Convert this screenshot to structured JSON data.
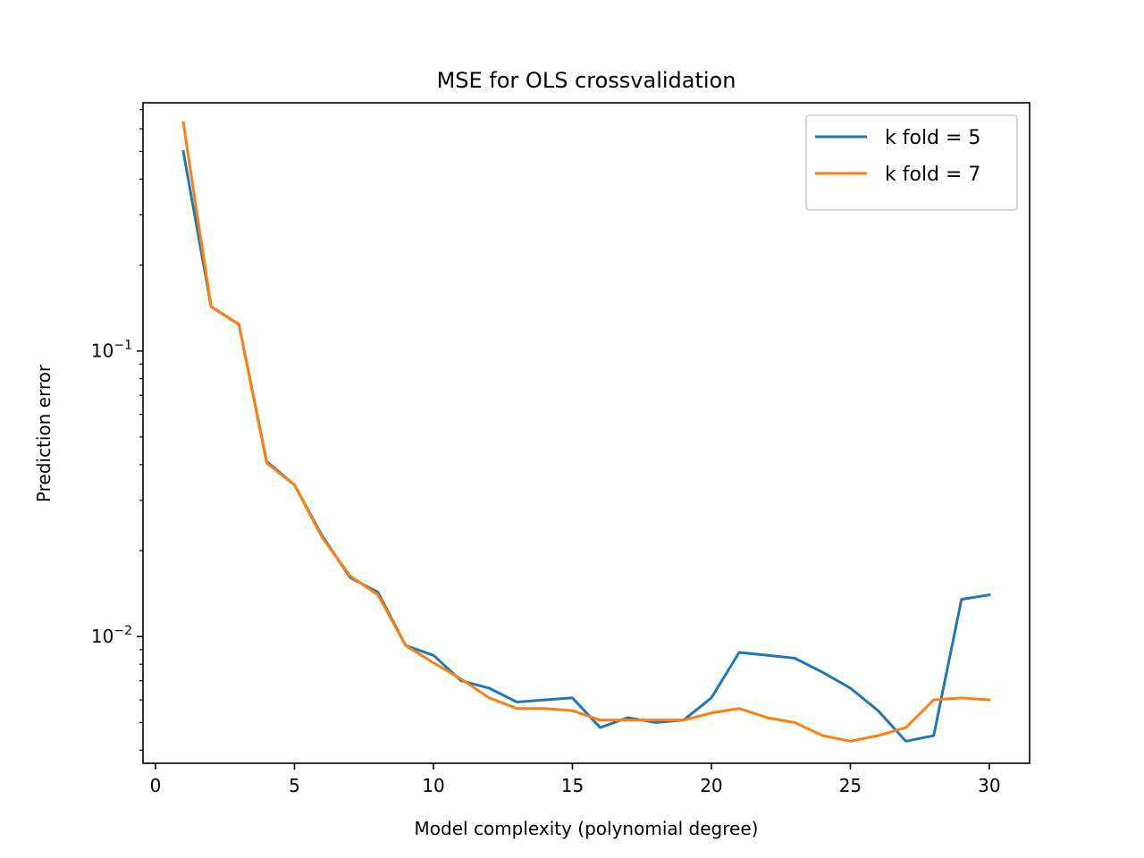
{
  "chart_data": {
    "type": "line",
    "title": "MSE for OLS crossvalidation",
    "xlabel": "Model complexity (polynomial degree)",
    "ylabel": "Prediction error",
    "xlim": [
      -0.45,
      31.45
    ],
    "ylim": [
      0.0036,
      0.74
    ],
    "yscale": "log",
    "grid": false,
    "legend_position": "top-right",
    "x_ticks": [
      0,
      5,
      10,
      15,
      20,
      25,
      30
    ],
    "y_ticks": [
      {
        "value": 0.1,
        "base": "10",
        "exp": "−1"
      },
      {
        "value": 0.01,
        "base": "10",
        "exp": "−2"
      }
    ],
    "x": [
      1,
      2,
      3,
      4,
      5,
      6,
      7,
      8,
      9,
      10,
      11,
      12,
      13,
      14,
      15,
      16,
      17,
      18,
      19,
      20,
      21,
      22,
      23,
      24,
      25,
      26,
      27,
      28,
      29,
      30
    ],
    "series": [
      {
        "name": "k fold = 5",
        "color": "#1f77b4",
        "values": [
          0.5,
          0.143,
          0.124,
          0.041,
          0.034,
          0.0225,
          0.0161,
          0.0143,
          0.0093,
          0.0086,
          0.007,
          0.0066,
          0.0059,
          0.006,
          0.0061,
          0.0048,
          0.0052,
          0.005,
          0.0051,
          0.0061,
          0.0088,
          0.0086,
          0.0084,
          0.0075,
          0.0066,
          0.0055,
          0.0043,
          0.0045,
          0.0135,
          0.014
        ]
      },
      {
        "name": "k fold = 7",
        "color": "#ff7f0e",
        "values": [
          0.63,
          0.143,
          0.124,
          0.0405,
          0.034,
          0.0222,
          0.0163,
          0.014,
          0.0093,
          0.0081,
          0.0071,
          0.0061,
          0.0056,
          0.0056,
          0.0055,
          0.0051,
          0.0051,
          0.0051,
          0.0051,
          0.0054,
          0.0056,
          0.0052,
          0.005,
          0.0045,
          0.0043,
          0.0045,
          0.0048,
          0.006,
          0.0061,
          0.006
        ]
      }
    ]
  }
}
